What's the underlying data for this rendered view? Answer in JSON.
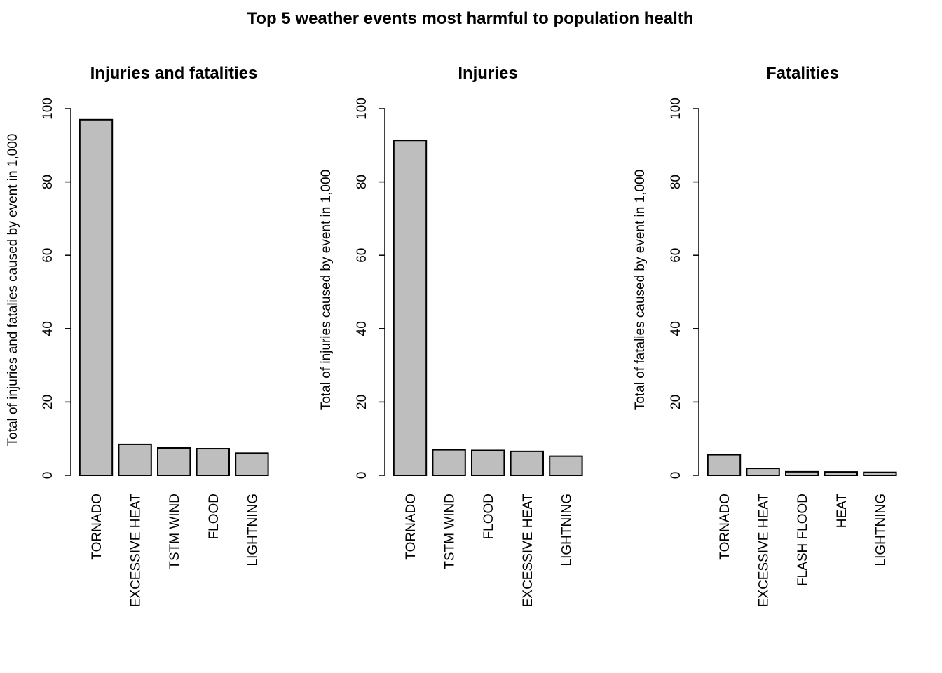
{
  "title": "Top 5 weather events most harmful to population health",
  "colors": {
    "bar_fill": "#bebebe",
    "bar_stroke": "#000000",
    "background": "#ffffff"
  },
  "chart_data": [
    {
      "type": "bar",
      "title": "Injuries and fatalities",
      "ylabel": "Total of injuries and fatalies caused by event in 1,000",
      "xlabel": "",
      "ylim": [
        0,
        100
      ],
      "yticks": [
        0,
        20,
        40,
        60,
        80,
        100
      ],
      "categories": [
        "TORNADO",
        "EXCESSIVE HEAT",
        "TSTM WIND",
        "FLOOD",
        "LIGHTNING"
      ],
      "values": [
        96.98,
        8.43,
        7.46,
        7.26,
        6.05
      ],
      "grid": false,
      "legend": "none"
    },
    {
      "type": "bar",
      "title": "Injuries",
      "ylabel": "Total of injuries caused by event in 1,000",
      "xlabel": "",
      "ylim": [
        0,
        100
      ],
      "yticks": [
        0,
        20,
        40,
        60,
        80,
        100
      ],
      "categories": [
        "TORNADO",
        "TSTM WIND",
        "FLOOD",
        "EXCESSIVE HEAT",
        "LIGHTNING"
      ],
      "values": [
        91.35,
        6.96,
        6.79,
        6.53,
        5.23
      ],
      "grid": false,
      "legend": "none"
    },
    {
      "type": "bar",
      "title": "Fatalities",
      "ylabel": "Total of fatalies caused by event in 1,000",
      "xlabel": "",
      "ylim": [
        0,
        100
      ],
      "yticks": [
        0,
        20,
        40,
        60,
        80,
        100
      ],
      "categories": [
        "TORNADO",
        "EXCESSIVE HEAT",
        "FLASH FLOOD",
        "HEAT",
        "LIGHTNING"
      ],
      "values": [
        5.63,
        1.9,
        0.98,
        0.94,
        0.82
      ],
      "grid": false,
      "legend": "none"
    }
  ]
}
